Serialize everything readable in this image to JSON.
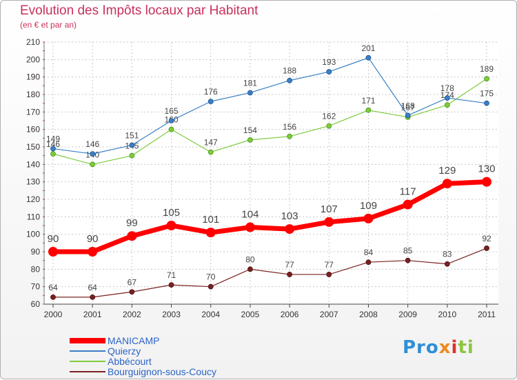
{
  "title": "Evolution des Impôts locaux par Habitant",
  "subtitle": "(en € et par an)",
  "logo": "Proxiti",
  "chart_data": {
    "type": "line",
    "x": [
      "2000",
      "2001",
      "2002",
      "2003",
      "2004",
      "2005",
      "2006",
      "2007",
      "2008",
      "2009",
      "2010",
      "2011"
    ],
    "ylim": [
      60,
      210
    ],
    "yticks": [
      60,
      70,
      80,
      90,
      100,
      110,
      120,
      130,
      140,
      150,
      160,
      170,
      180,
      190,
      200,
      210
    ],
    "grid": true,
    "legend": "bottom-left",
    "series": [
      {
        "name": "MANICAMP",
        "color": "#ff0000",
        "values": [
          90,
          90,
          99,
          105,
          101,
          104,
          103,
          107,
          109,
          117,
          129,
          130
        ]
      },
      {
        "name": "Quierzy",
        "color": "#3a7fc6",
        "values": [
          149,
          146,
          151,
          165,
          176,
          181,
          188,
          193,
          201,
          168,
          178,
          175
        ]
      },
      {
        "name": "Abbécourt",
        "color": "#7ccc3a",
        "values": [
          146,
          140,
          145,
          160,
          147,
          154,
          156,
          162,
          171,
          167,
          174,
          189
        ]
      },
      {
        "name": "Bourguignon-sous-Coucy",
        "color": "#7a2020",
        "values": [
          64,
          64,
          67,
          71,
          70,
          80,
          77,
          77,
          84,
          85,
          83,
          92
        ]
      }
    ]
  }
}
